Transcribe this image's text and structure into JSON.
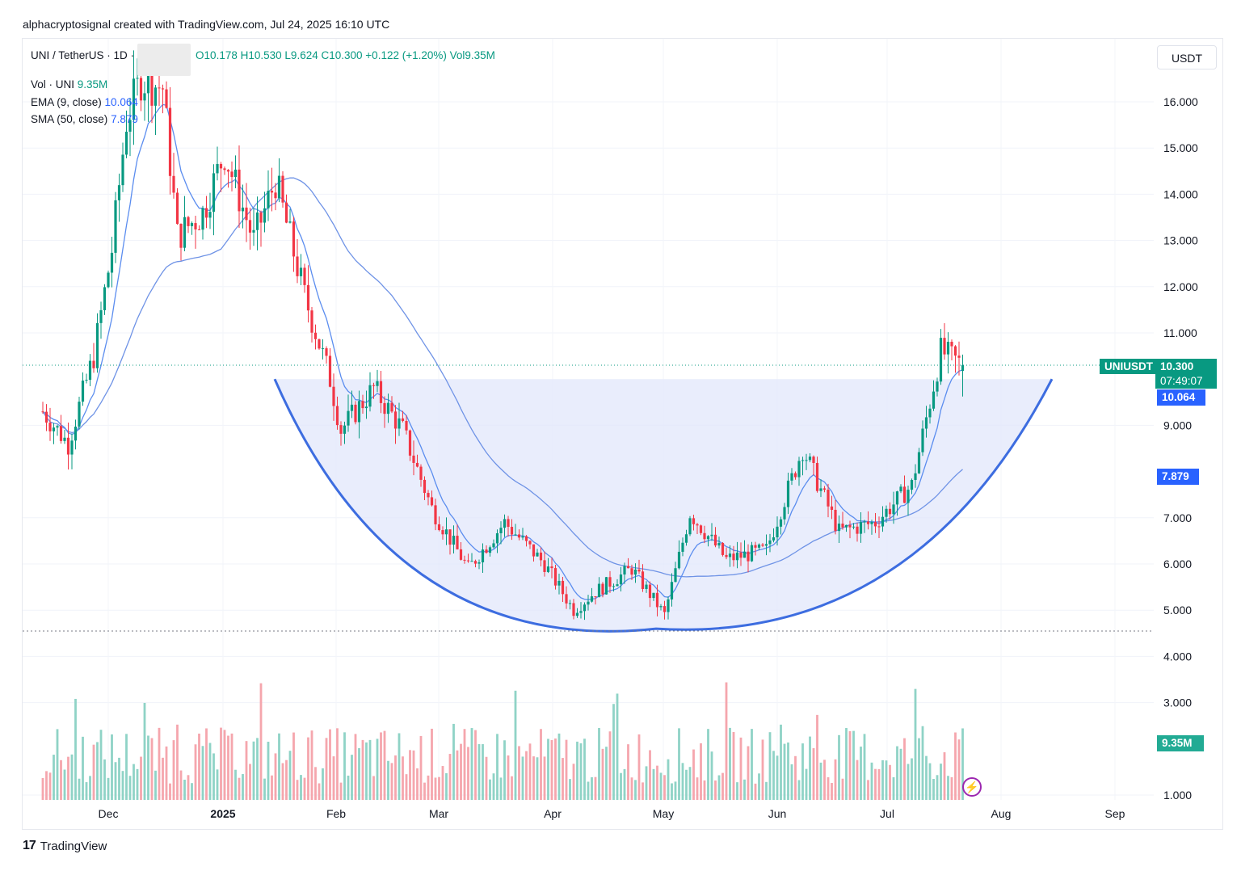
{
  "header": {
    "attribution": "alphacryptosignal created with TradingView.com, Jul 24, 2025 16:10 UTC"
  },
  "legend": {
    "symbol": "UNI / TetherUS · 1D ·",
    "open": "O10.178",
    "high": "H10.530",
    "low": "L9.624",
    "close": "C10.300",
    "change": "+0.122 (+1.20%)",
    "vol": "Vol9.35M",
    "vol_label": "Vol · UNI",
    "vol_value": "9.35M",
    "ema_label": "EMA (9, close)",
    "ema_value": "10.064",
    "sma_label": "SMA (50, close)",
    "sma_value": "7.879"
  },
  "currency_button": "USDT",
  "tags": {
    "symbol": "UNIUSDT",
    "price": "10.300",
    "countdown": "07:49:07",
    "ema": "10.064",
    "sma": "7.879",
    "volume": "9.35M"
  },
  "footer": {
    "brand": "TradingView"
  },
  "colors": {
    "up": "#089981",
    "down": "#f23645",
    "ma": "#2962ff",
    "bowl_fill": "#dfe5fb",
    "bowl_line": "#3d6de0"
  },
  "chart_data": {
    "type": "candlestick",
    "symbol": "UNIUSDT",
    "timeframe": "1D",
    "x_ticks": [
      "Dec",
      "2025",
      "Feb",
      "Mar",
      "Apr",
      "May",
      "Jun",
      "Jul",
      "Aug",
      "Sep"
    ],
    "y_ticks": [
      "16.000",
      "15.000",
      "14.000",
      "13.000",
      "12.000",
      "11.000",
      "9.000",
      "7.000",
      "6.000",
      "5.000",
      "4.000",
      "3.000",
      "1.000"
    ],
    "price_range": [
      3.6,
      17.0
    ],
    "last_price": 10.3,
    "ema9": 10.064,
    "sma50": 7.879,
    "support_level": 4.55,
    "pattern": "cup (rounded bottom) spanning mid-Jan to early Aug, rim at ~10.0, bottom ~4.6 near end of April",
    "close_path": [
      [
        "2024-11-13",
        9.3
      ],
      [
        "2024-11-20",
        8.6
      ],
      [
        "2024-11-27",
        10.5
      ],
      [
        "2024-12-02",
        12.8
      ],
      [
        "2024-12-06",
        15.6
      ],
      [
        "2024-12-10",
        16.5
      ],
      [
        "2024-12-16",
        16.3
      ],
      [
        "2024-12-20",
        13.1
      ],
      [
        "2024-12-27",
        13.6
      ],
      [
        "2025-01-02",
        14.9
      ],
      [
        "2025-01-10",
        13.0
      ],
      [
        "2025-01-16",
        14.3
      ],
      [
        "2025-01-24",
        11.8
      ],
      [
        "2025-01-31",
        10.0
      ],
      [
        "2025-02-03",
        8.9
      ],
      [
        "2025-02-12",
        9.8
      ],
      [
        "2025-02-20",
        8.9
      ],
      [
        "2025-02-28",
        7.2
      ],
      [
        "2025-03-10",
        5.9
      ],
      [
        "2025-03-20",
        6.9
      ],
      [
        "2025-03-31",
        6.0
      ],
      [
        "2025-04-08",
        5.0
      ],
      [
        "2025-04-14",
        5.4
      ],
      [
        "2025-04-24",
        5.9
      ],
      [
        "2025-05-03",
        4.9
      ],
      [
        "2025-05-10",
        7.1
      ],
      [
        "2025-05-20",
        6.1
      ],
      [
        "2025-05-31",
        6.3
      ],
      [
        "2025-06-10",
        8.5
      ],
      [
        "2025-06-20",
        6.7
      ],
      [
        "2025-06-30",
        6.9
      ],
      [
        "2025-07-10",
        7.7
      ],
      [
        "2025-07-18",
        10.6
      ],
      [
        "2025-07-24",
        10.3
      ]
    ]
  }
}
